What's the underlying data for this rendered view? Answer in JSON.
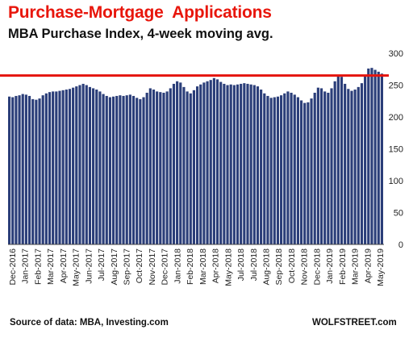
{
  "chart_data": {
    "type": "bar",
    "title": "Purchase-Mortgage  Applications",
    "subtitle": "MBA Purchase Index, 4-week moving avg.",
    "xlabel": "",
    "ylabel": "",
    "ylim": [
      0,
      300
    ],
    "yticks": [
      0,
      50,
      100,
      150,
      200,
      250,
      300
    ],
    "grid": false,
    "bar_color": "#2b3e79",
    "reference_line": {
      "value": 265,
      "color": "#e5140e"
    },
    "x_tick_labels": [
      "Dec-2016",
      "Jan-2017",
      "Feb-2017",
      "Mar-2017",
      "Apr-2017",
      "May-2017",
      "Jun-2017",
      "Jul-2017",
      "Aug-2017",
      "Sep-2017",
      "Oct-2017",
      "Nov-2017",
      "Dec-2017",
      "Jan-2018",
      "Feb-2018",
      "Mar-2018",
      "Apr-2018",
      "May-2018",
      "Jul-2018",
      "Jul-2018",
      "Aug-2018",
      "Sep-2018",
      "Oct-2018",
      "Nov-2018",
      "Dec-2018",
      "Jan-2019",
      "Feb-2019",
      "Mar-2019",
      "Apr-2019",
      "May-2019"
    ],
    "values": [
      232,
      231,
      233,
      234,
      236,
      235,
      233,
      228,
      227,
      229,
      234,
      237,
      239,
      240,
      240,
      241,
      242,
      243,
      244,
      246,
      248,
      250,
      252,
      250,
      247,
      245,
      243,
      240,
      236,
      233,
      231,
      232,
      233,
      234,
      233,
      234,
      235,
      233,
      230,
      228,
      231,
      238,
      245,
      243,
      240,
      239,
      238,
      240,
      245,
      252,
      256,
      254,
      247,
      240,
      237,
      242,
      248,
      251,
      254,
      256,
      258,
      261,
      259,
      255,
      252,
      250,
      251,
      250,
      251,
      252,
      253,
      252,
      251,
      250,
      248,
      243,
      237,
      233,
      230,
      231,
      232,
      234,
      237,
      240,
      238,
      235,
      231,
      226,
      222,
      223,
      229,
      238,
      246,
      245,
      240,
      238,
      245,
      256,
      265,
      263,
      252,
      244,
      241,
      243,
      247,
      253,
      264,
      276,
      277,
      274,
      271,
      268
    ]
  },
  "footer": {
    "source": "Source of data: MBA, Investing.com",
    "brand": "WOLFSTREET.com"
  }
}
